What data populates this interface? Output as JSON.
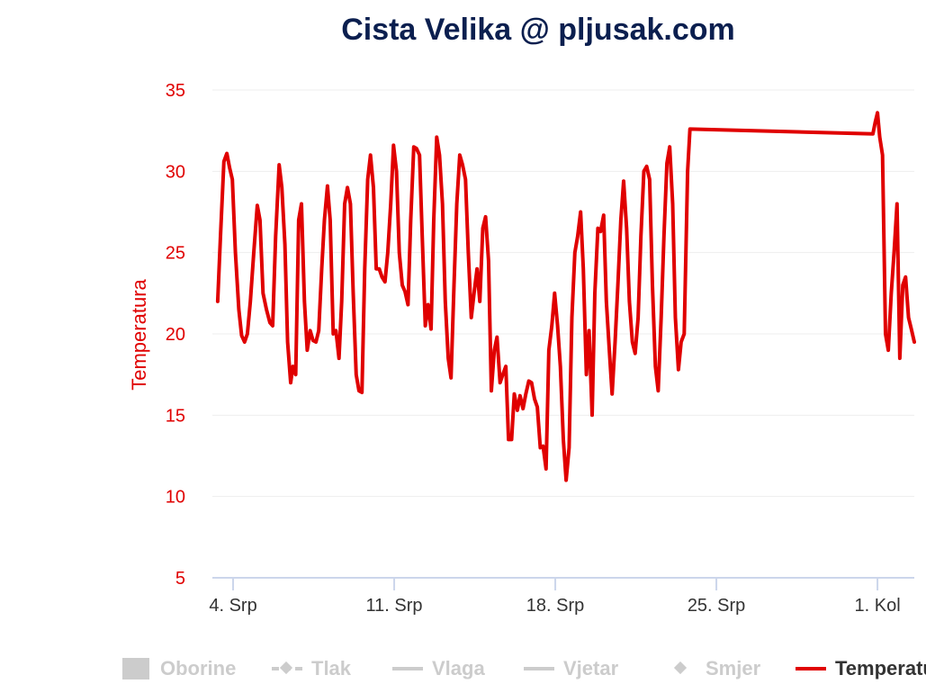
{
  "chart_data": {
    "type": "line",
    "title": "Cista Velika @ pljusak.com",
    "ylabel": "Temperatura",
    "ylim": [
      5,
      35
    ],
    "yticks": [
      5,
      10,
      15,
      20,
      25,
      30,
      35
    ],
    "grid": true,
    "legend_position": "bottom",
    "x_ticks": [
      {
        "label": "4. Srp",
        "day": 4
      },
      {
        "label": "11. Srp",
        "day": 11
      },
      {
        "label": "18. Srp",
        "day": 18
      },
      {
        "label": "25. Srp",
        "day": 25
      },
      {
        "label": "1. Kol",
        "day": 32
      }
    ],
    "xlim": [
      3.1,
      33.6
    ],
    "series": [
      {
        "name": "Temperatura",
        "color": "#e00000",
        "points": [
          [
            3.33,
            22.0
          ],
          [
            3.45,
            26.0
          ],
          [
            3.6,
            30.6
          ],
          [
            3.73,
            31.1
          ],
          [
            3.85,
            30.2
          ],
          [
            3.97,
            29.5
          ],
          [
            4.1,
            25.0
          ],
          [
            4.25,
            21.5
          ],
          [
            4.37,
            19.9
          ],
          [
            4.5,
            19.5
          ],
          [
            4.62,
            20.0
          ],
          [
            4.75,
            22.0
          ],
          [
            4.9,
            25.0
          ],
          [
            5.05,
            27.9
          ],
          [
            5.17,
            27.0
          ],
          [
            5.3,
            22.5
          ],
          [
            5.45,
            21.5
          ],
          [
            5.6,
            20.7
          ],
          [
            5.72,
            20.5
          ],
          [
            5.85,
            26.0
          ],
          [
            6.0,
            30.4
          ],
          [
            6.12,
            29.0
          ],
          [
            6.25,
            25.5
          ],
          [
            6.37,
            19.5
          ],
          [
            6.5,
            17.0
          ],
          [
            6.6,
            18.0
          ],
          [
            6.72,
            17.5
          ],
          [
            6.85,
            27.0
          ],
          [
            6.97,
            28.0
          ],
          [
            7.1,
            22.0
          ],
          [
            7.22,
            19.0
          ],
          [
            7.35,
            20.2
          ],
          [
            7.47,
            19.6
          ],
          [
            7.6,
            19.5
          ],
          [
            7.72,
            20.2
          ],
          [
            7.85,
            24.0
          ],
          [
            7.97,
            27.0
          ],
          [
            8.1,
            29.1
          ],
          [
            8.22,
            27.0
          ],
          [
            8.35,
            20.0
          ],
          [
            8.47,
            20.2
          ],
          [
            8.6,
            18.5
          ],
          [
            8.72,
            22.0
          ],
          [
            8.85,
            28.0
          ],
          [
            8.97,
            29.0
          ],
          [
            9.1,
            28.0
          ],
          [
            9.22,
            22.5
          ],
          [
            9.35,
            17.5
          ],
          [
            9.47,
            16.5
          ],
          [
            9.6,
            16.4
          ],
          [
            9.72,
            24.0
          ],
          [
            9.85,
            29.5
          ],
          [
            9.97,
            31.0
          ],
          [
            10.1,
            29.0
          ],
          [
            10.22,
            24.0
          ],
          [
            10.35,
            24.0
          ],
          [
            10.47,
            23.5
          ],
          [
            10.6,
            23.2
          ],
          [
            10.72,
            25.0
          ],
          [
            10.85,
            28.0
          ],
          [
            10.97,
            31.6
          ],
          [
            11.1,
            30.0
          ],
          [
            11.22,
            25.0
          ],
          [
            11.35,
            23.0
          ],
          [
            11.47,
            22.6
          ],
          [
            11.6,
            21.8
          ],
          [
            11.72,
            27.0
          ],
          [
            11.85,
            31.5
          ],
          [
            11.97,
            31.4
          ],
          [
            12.1,
            31.0
          ],
          [
            12.22,
            26.0
          ],
          [
            12.35,
            20.5
          ],
          [
            12.47,
            21.8
          ],
          [
            12.6,
            20.3
          ],
          [
            12.72,
            27.0
          ],
          [
            12.85,
            32.1
          ],
          [
            12.97,
            31.0
          ],
          [
            13.1,
            28.0
          ],
          [
            13.22,
            22.0
          ],
          [
            13.35,
            18.5
          ],
          [
            13.47,
            17.3
          ],
          [
            13.6,
            23.0
          ],
          [
            13.72,
            28.0
          ],
          [
            13.85,
            31.0
          ],
          [
            13.97,
            30.4
          ],
          [
            14.1,
            29.5
          ],
          [
            14.22,
            25.0
          ],
          [
            14.35,
            21.0
          ],
          [
            14.47,
            22.5
          ],
          [
            14.6,
            24.0
          ],
          [
            14.72,
            22.0
          ],
          [
            14.85,
            26.5
          ],
          [
            14.97,
            27.2
          ],
          [
            15.1,
            24.5
          ],
          [
            15.22,
            16.5
          ],
          [
            15.35,
            19.0
          ],
          [
            15.47,
            19.8
          ],
          [
            15.6,
            17.0
          ],
          [
            15.72,
            17.5
          ],
          [
            15.85,
            18.0
          ],
          [
            15.97,
            13.5
          ],
          [
            16.1,
            13.5
          ],
          [
            16.22,
            16.3
          ],
          [
            16.35,
            15.3
          ],
          [
            16.47,
            16.2
          ],
          [
            16.6,
            15.4
          ],
          [
            16.72,
            16.3
          ],
          [
            16.85,
            17.1
          ],
          [
            16.97,
            17.0
          ],
          [
            17.1,
            16.0
          ],
          [
            17.22,
            15.5
          ],
          [
            17.35,
            13.0
          ],
          [
            17.47,
            13.1
          ],
          [
            17.6,
            11.7
          ],
          [
            17.72,
            19.0
          ],
          [
            17.85,
            20.5
          ],
          [
            17.97,
            22.5
          ],
          [
            18.1,
            20.5
          ],
          [
            18.22,
            18.0
          ],
          [
            18.35,
            13.5
          ],
          [
            18.47,
            11.0
          ],
          [
            18.6,
            13.0
          ],
          [
            18.72,
            21.0
          ],
          [
            18.85,
            25.0
          ],
          [
            18.97,
            26.0
          ],
          [
            19.1,
            27.5
          ],
          [
            19.22,
            24.0
          ],
          [
            19.35,
            17.5
          ],
          [
            19.47,
            20.2
          ],
          [
            19.6,
            15.0
          ],
          [
            19.72,
            22.5
          ],
          [
            19.85,
            26.5
          ],
          [
            19.97,
            26.3
          ],
          [
            20.1,
            27.3
          ],
          [
            20.22,
            22.0
          ],
          [
            20.35,
            19.0
          ],
          [
            20.47,
            16.3
          ],
          [
            20.6,
            19.5
          ],
          [
            20.72,
            23.0
          ],
          [
            20.85,
            27.0
          ],
          [
            20.97,
            29.4
          ],
          [
            21.1,
            26.5
          ],
          [
            21.22,
            22.0
          ],
          [
            21.35,
            19.5
          ],
          [
            21.47,
            18.8
          ],
          [
            21.6,
            21.0
          ],
          [
            21.72,
            26.0
          ],
          [
            21.85,
            30.0
          ],
          [
            21.97,
            30.3
          ],
          [
            22.1,
            29.5
          ],
          [
            22.22,
            23.0
          ],
          [
            22.35,
            18.0
          ],
          [
            22.47,
            16.5
          ],
          [
            22.6,
            21.0
          ],
          [
            22.72,
            26.0
          ],
          [
            22.85,
            30.5
          ],
          [
            22.97,
            31.5
          ],
          [
            23.1,
            28.0
          ],
          [
            23.22,
            21.0
          ],
          [
            23.35,
            17.8
          ],
          [
            23.47,
            19.5
          ],
          [
            23.6,
            20.0
          ],
          [
            23.75,
            30.0
          ],
          [
            23.85,
            32.6
          ],
          [
            31.8,
            32.3
          ],
          [
            31.9,
            33.0
          ],
          [
            32.0,
            33.6
          ],
          [
            32.1,
            32.1
          ],
          [
            32.22,
            31.0
          ],
          [
            32.35,
            20.0
          ],
          [
            32.47,
            19.0
          ],
          [
            32.6,
            22.5
          ],
          [
            32.72,
            25.0
          ],
          [
            32.85,
            28.0
          ],
          [
            32.97,
            18.5
          ],
          [
            33.1,
            23.0
          ],
          [
            33.22,
            23.5
          ],
          [
            33.35,
            21.0
          ],
          [
            33.47,
            20.3
          ],
          [
            33.6,
            19.5
          ]
        ]
      }
    ]
  },
  "legend": {
    "items": [
      {
        "label": "Oborine",
        "symbol": "box",
        "active": false
      },
      {
        "label": "Tlak",
        "symbol": "dash-diamond",
        "active": false
      },
      {
        "label": "Vlaga",
        "symbol": "line",
        "active": false
      },
      {
        "label": "Vjetar",
        "symbol": "line",
        "active": false
      },
      {
        "label": "Smjer",
        "symbol": "diamond",
        "active": false
      },
      {
        "label": "Temperatura",
        "symbol": "line",
        "active": true
      }
    ]
  }
}
